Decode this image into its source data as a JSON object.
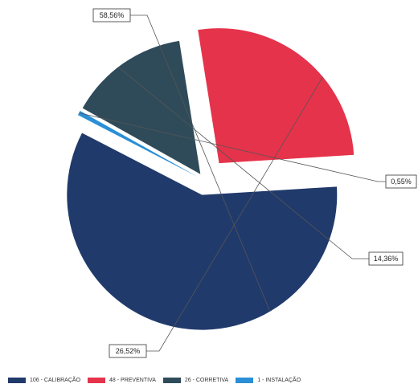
{
  "chart_data": {
    "type": "pie",
    "title": "",
    "slices": [
      {
        "label": "106 - CALIBRAÇÃO",
        "count": 106,
        "percent_label": "58,56%",
        "percent": 58.56,
        "color": "#213a6c"
      },
      {
        "label": "1 - INSTALAÇÃO",
        "count": 1,
        "percent_label": "0,55%",
        "percent": 0.55,
        "color": "#2a8fd6"
      },
      {
        "label": "26 - CORRETIVA",
        "count": 26,
        "percent_label": "14,36%",
        "percent": 14.36,
        "color": "#2f4b5a"
      },
      {
        "label": "48 - PREVENTIVA",
        "count": 48,
        "percent_label": "26,52%",
        "percent": 26.52,
        "color": "#e5334b"
      }
    ],
    "legend": {
      "placement": "bottom",
      "items": [
        {
          "label": "106 - CALIBRAÇÃO",
          "color": "#213a6c"
        },
        {
          "label": "48 - PREVENTIVA",
          "color": "#e5334b"
        },
        {
          "label": "26 - CORRETIVA",
          "color": "#2f4b5a"
        },
        {
          "label": "1 - INSTALAÇÃO",
          "color": "#2a8fd6"
        }
      ]
    }
  }
}
